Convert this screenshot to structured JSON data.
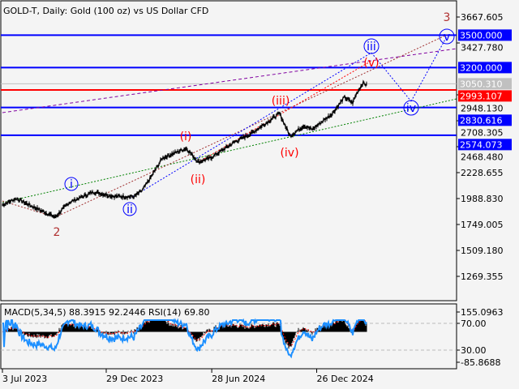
{
  "header": {
    "title": "GOLD-T, Daily:  Gold (100 oz) vs US Dollar CFD"
  },
  "chart_data": {
    "type": "line",
    "title": "GOLD-T, Daily:  Gold (100 oz) vs US Dollar CFD",
    "ylim": [
      1149.44,
      3707.6
    ],
    "y_ticks": [
      "3667.605",
      "3427.780",
      "2948.130",
      "2708.305",
      "2468.480",
      "2228.655",
      "1988.830",
      "1749.005",
      "1509.180",
      "1269.355"
    ],
    "x_ticks": [
      "3 Jul 2023",
      "29 Dec 2023",
      "28 Jun 2024",
      "26 Dec 2024"
    ],
    "x_tick_dates": [
      "2023-07-03",
      "2023-12-29",
      "2024-06-28",
      "2024-12-26"
    ],
    "series": [
      {
        "x": [
          "2023-07-03",
          "2023-07-27",
          "2023-08-24",
          "2023-10-02",
          "2023-10-26",
          "2023-12-07",
          "2024-01-11",
          "2024-02-15",
          "2024-02-29",
          "2024-03-14",
          "2024-04-04",
          "2024-05-15",
          "2024-06-05",
          "2024-06-26",
          "2024-08-07",
          "2024-09-04",
          "2024-10-23",
          "2024-11-10",
          "2024-12-04",
          "2024-12-18",
          "2025-01-22",
          "2025-02-12",
          "2025-02-26",
          "2025-03-05",
          "2025-03-16",
          "2025-03-22"
        ],
        "y": [
          1930,
          1990,
          1915,
          1817,
          1952,
          2050,
          2010,
          2005,
          2063,
          2176,
          2364,
          2454,
          2327,
          2364,
          2514,
          2590,
          2776,
          2567,
          2664,
          2626,
          2776,
          2926,
          2873,
          2963,
          3060,
          3038
        ]
      }
    ],
    "levels": [
      {
        "value": "3500.000",
        "color": "#0000ff"
      },
      {
        "value": "3200.000",
        "color": "#0000ff"
      },
      {
        "value": "2993.107",
        "color": "#ff0000"
      },
      {
        "value": "2830.616",
        "color": "#0000ff"
      },
      {
        "value": "2574.073",
        "color": "#0000ff"
      }
    ],
    "bid_label": {
      "value": "3050.310",
      "color": "#c0c0c0"
    },
    "wave_labels": {
      "major": [
        "2",
        "3"
      ],
      "minor_circled": [
        "i",
        "ii",
        "iii",
        "iv",
        "v"
      ],
      "minute_paren": [
        "(i)",
        "(ii)",
        "(iii)",
        "(iv)",
        "(v)"
      ]
    },
    "indicator": {
      "label": "MACD(5,34,5) 88.3915 92.2446 RSI(14) 69.80",
      "y_ticks": [
        "155.0963",
        "70.00",
        "30.00",
        "-85.8688"
      ],
      "colors": {
        "histogram": "#000000",
        "signal": "#ff0000",
        "rsi": "#1e90ff"
      }
    }
  }
}
